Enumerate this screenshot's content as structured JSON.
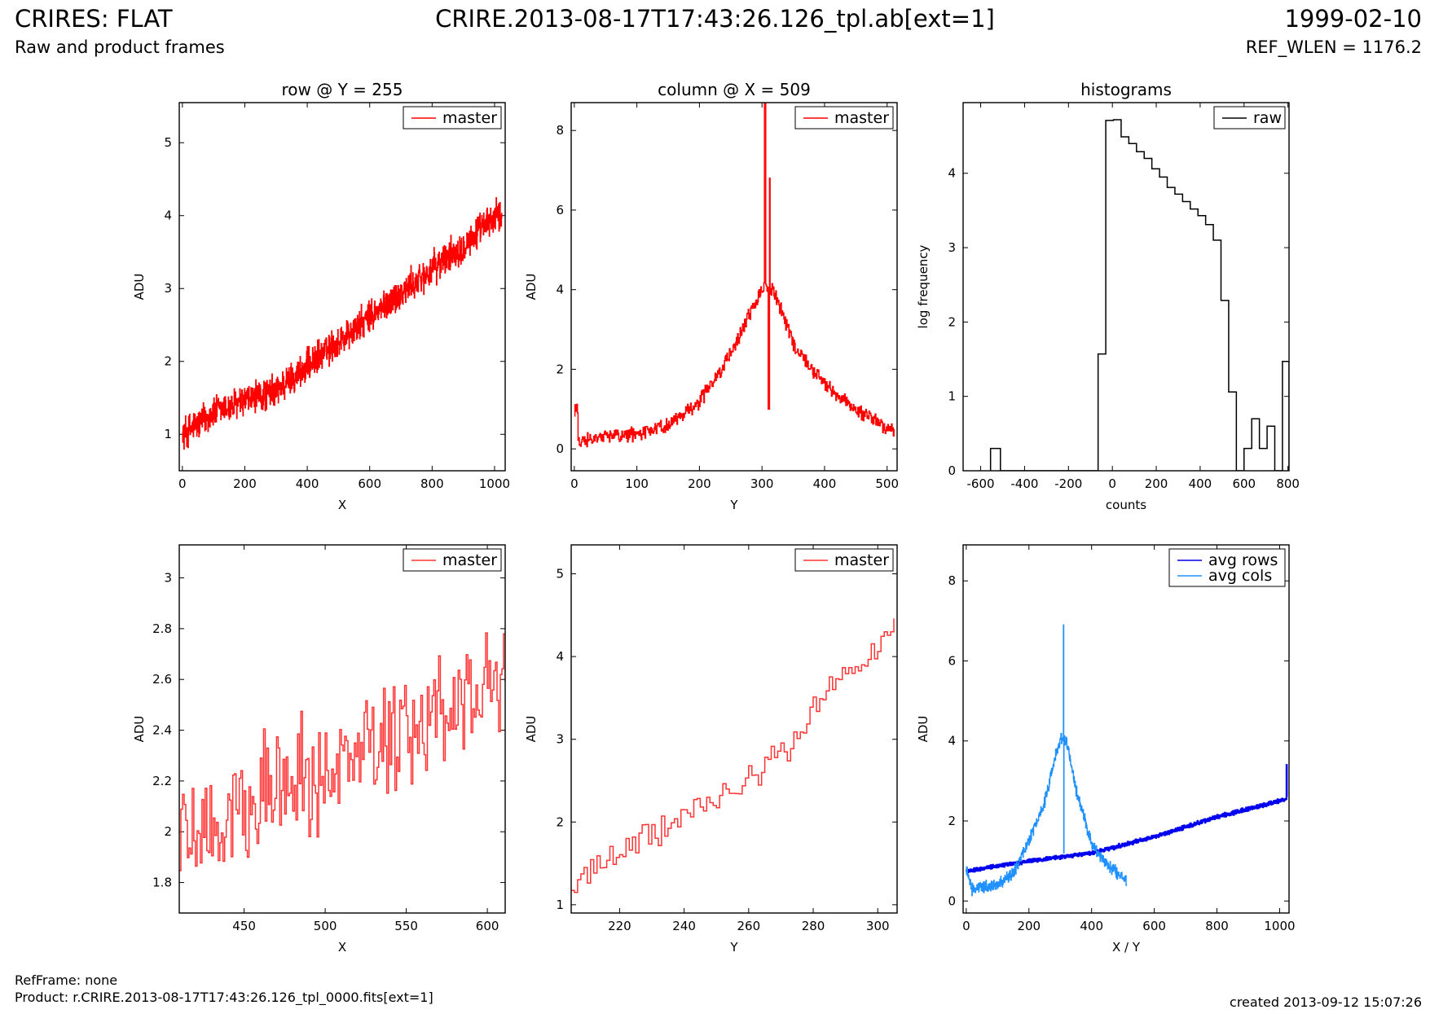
{
  "header": {
    "title": "CRIRES: FLAT",
    "subtitle": "Raw and product frames",
    "filename": "CRIRE.2013-08-17T17:43:26.126_tpl.ab[ext=1]",
    "date": "1999-02-10",
    "ref_wlen": "REF_WLEN = 1176.2"
  },
  "footer": {
    "ref_frame": "RefFrame: none",
    "product": "Product: r.CRIRE.2013-08-17T17:43:26.126_tpl_0000.fits[ext=1]",
    "created": "created 2013-09-12 15:07:26"
  },
  "colors": {
    "master": "#ff0000",
    "master_zoom": "#ff3333",
    "raw": "#000000",
    "avg_rows": "#0000ee",
    "avg_cols": "#1e90ff"
  },
  "chart_data": [
    {
      "id": "row",
      "type": "line",
      "title": "row @ Y = 255",
      "xlabel": "X",
      "ylabel": "ADU",
      "xlim": [
        -10,
        1034
      ],
      "ylim": [
        0.5,
        5.55
      ],
      "xticks": [
        0,
        200,
        400,
        600,
        800,
        1000
      ],
      "yticks": [
        1,
        2,
        3,
        4,
        5
      ],
      "legend_position": "top-right",
      "series": [
        {
          "name": "master",
          "color": "#ff0000",
          "kind": "noisy",
          "x_range": [
            0,
            1023
          ],
          "n": 1024,
          "trend": [
            [
              0,
              1.0
            ],
            [
              100,
              1.3
            ],
            [
              300,
              1.6
            ],
            [
              450,
              2.1
            ],
            [
              600,
              2.6
            ],
            [
              750,
              3.1
            ],
            [
              900,
              3.6
            ],
            [
              1023,
              4.05
            ]
          ],
          "noise": 0.28
        }
      ]
    },
    {
      "id": "col",
      "type": "line",
      "title": "column @ X = 509",
      "xlabel": "Y",
      "ylabel": "ADU",
      "xlim": [
        -5,
        516
      ],
      "ylim": [
        -0.55,
        8.7
      ],
      "xticks": [
        0,
        100,
        200,
        300,
        400,
        500
      ],
      "yticks": [
        0,
        2,
        4,
        6,
        8
      ],
      "legend_position": "top-right",
      "series": [
        {
          "name": "master",
          "color": "#ff0000",
          "kind": "noisy",
          "x_range": [
            0,
            511
          ],
          "n": 512,
          "trend": [
            [
              0,
              1.0
            ],
            [
              5,
              1.0
            ],
            [
              6,
              0.15
            ],
            [
              20,
              0.25
            ],
            [
              100,
              0.4
            ],
            [
              150,
              0.6
            ],
            [
              200,
              1.2
            ],
            [
              250,
              2.4
            ],
            [
              290,
              3.7
            ],
            [
              303,
              4.1
            ],
            [
              320,
              3.9
            ],
            [
              350,
              2.6
            ],
            [
              400,
              1.6
            ],
            [
              450,
              1.0
            ],
            [
              511,
              0.45
            ]
          ],
          "noise": 0.22,
          "spikes": [
            [
              304,
              8.7
            ],
            [
              305,
              8.7
            ],
            [
              310,
              1.0
            ],
            [
              311,
              1.0
            ],
            [
              312,
              6.8
            ]
          ]
        }
      ]
    },
    {
      "id": "hist",
      "type": "histogram",
      "title": "histograms",
      "xlabel": "counts",
      "ylabel": "log frequency",
      "xlim": [
        -680,
        805
      ],
      "ylim": [
        0,
        4.95
      ],
      "xticks": [
        -600,
        -400,
        -200,
        0,
        200,
        400,
        600,
        800
      ],
      "yticks": [
        0,
        1,
        2,
        3,
        4
      ],
      "legend_position": "top-right",
      "series": [
        {
          "name": "raw",
          "color": "#000000",
          "edges": [
            -555,
            -510,
            -65,
            -30,
            5,
            40,
            75,
            110,
            145,
            180,
            215,
            250,
            285,
            320,
            355,
            390,
            425,
            460,
            495,
            530,
            565,
            600,
            635,
            670,
            705,
            740,
            775,
            805
          ],
          "values": [
            0.3,
            0,
            1.57,
            4.71,
            4.72,
            4.49,
            4.4,
            4.29,
            4.2,
            4.06,
            3.95,
            3.81,
            3.72,
            3.62,
            3.52,
            3.43,
            3.31,
            3.1,
            2.29,
            1.06,
            0,
            0.3,
            0.7,
            0.3,
            0.6,
            0,
            1.47
          ]
        }
      ]
    },
    {
      "id": "row_zoom",
      "type": "line",
      "title": "",
      "xlabel": "X",
      "ylabel": "ADU",
      "xlim": [
        410,
        611
      ],
      "ylim": [
        1.68,
        3.13
      ],
      "xticks": [
        450,
        500,
        550,
        600
      ],
      "yticks": [
        1.8,
        2.0,
        2.2,
        2.4,
        2.6,
        2.8,
        3.0
      ],
      "legend_position": "top-right",
      "series": [
        {
          "name": "master",
          "color": "#ff3333",
          "kind": "noisy",
          "x_range": [
            410,
            611
          ],
          "n": 202,
          "trend": [
            [
              410,
              1.98
            ],
            [
              460,
              2.15
            ],
            [
              500,
              2.25
            ],
            [
              550,
              2.38
            ],
            [
              611,
              2.6
            ]
          ],
          "noise": 0.28
        }
      ]
    },
    {
      "id": "col_zoom",
      "type": "line",
      "title": "",
      "xlabel": "Y",
      "ylabel": "ADU",
      "xlim": [
        205,
        306
      ],
      "ylim": [
        0.9,
        5.35
      ],
      "xticks": [
        220,
        240,
        260,
        280,
        300
      ],
      "yticks": [
        1,
        2,
        3,
        4,
        5
      ],
      "legend_position": "top-right",
      "series": [
        {
          "name": "master",
          "color": "#ff3333",
          "kind": "noisy",
          "x_range": [
            205,
            305
          ],
          "n": 101,
          "trend": [
            [
              205,
              1.25
            ],
            [
              220,
              1.65
            ],
            [
              240,
              2.05
            ],
            [
              260,
              2.55
            ],
            [
              275,
              3.0
            ],
            [
              285,
              3.7
            ],
            [
              295,
              3.9
            ],
            [
              305,
              4.35
            ]
          ],
          "noise": 0.22
        }
      ]
    },
    {
      "id": "avg",
      "type": "line",
      "title": "",
      "xlabel": "X / Y",
      "ylabel": "ADU",
      "xlim": [
        -10,
        1030
      ],
      "ylim": [
        -0.3,
        8.9
      ],
      "xticks": [
        0,
        200,
        400,
        600,
        800,
        1000
      ],
      "yticks": [
        0,
        2,
        4,
        6,
        8
      ],
      "legend_position": "top-right",
      "series": [
        {
          "name": "avg rows",
          "color": "#0000ee",
          "kind": "noisy",
          "width": 2.2,
          "x_range": [
            0,
            1023
          ],
          "n": 1024,
          "trend": [
            [
              0,
              0.75
            ],
            [
              200,
              1.0
            ],
            [
              400,
              1.2
            ],
            [
              600,
              1.6
            ],
            [
              800,
              2.1
            ],
            [
              1023,
              2.55
            ]
          ],
          "noise": 0.06,
          "spikes": [
            [
              1022,
              3.4
            ]
          ]
        },
        {
          "name": "avg cols",
          "color": "#1e90ff",
          "kind": "noisy",
          "width": 1.4,
          "x_range": [
            0,
            511
          ],
          "n": 512,
          "trend": [
            [
              0,
              0.75
            ],
            [
              5,
              0.72
            ],
            [
              15,
              0.3
            ],
            [
              100,
              0.4
            ],
            [
              150,
              0.7
            ],
            [
              200,
              1.5
            ],
            [
              250,
              2.5
            ],
            [
              290,
              3.8
            ],
            [
              305,
              4.1
            ],
            [
              320,
              4.0
            ],
            [
              350,
              2.8
            ],
            [
              400,
              1.4
            ],
            [
              450,
              0.9
            ],
            [
              511,
              0.5
            ]
          ],
          "noise": 0.18,
          "spikes": [
            [
              310,
              6.9
            ],
            [
              311,
              1.2
            ]
          ]
        }
      ]
    }
  ]
}
